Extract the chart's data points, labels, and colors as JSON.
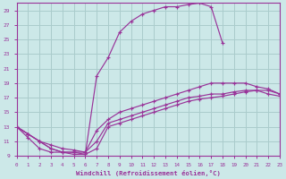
{
  "xlabel": "Windchill (Refroidissement éolien,°C)",
  "bg_color": "#cce8e8",
  "grid_color": "#aacccc",
  "line_color": "#993399",
  "xmin": 0,
  "xmax": 23,
  "ymin": 9,
  "ymax": 30,
  "yticks": [
    9,
    11,
    13,
    15,
    17,
    19,
    21,
    23,
    25,
    27,
    29
  ],
  "xticks": [
    0,
    1,
    2,
    3,
    4,
    5,
    6,
    7,
    8,
    9,
    10,
    11,
    12,
    13,
    14,
    15,
    16,
    17,
    18,
    19,
    20,
    21,
    22,
    23
  ],
  "curve1_x": [
    0,
    1,
    2,
    3,
    4,
    5,
    6,
    7,
    8,
    9,
    10,
    11,
    12,
    13,
    14,
    15,
    16,
    17,
    18
  ],
  "curve1_y": [
    13,
    12,
    11,
    10,
    9.5,
    9.5,
    9.2,
    20,
    22.5,
    26,
    27.5,
    28.5,
    29,
    29.5,
    29.5,
    29.8,
    30,
    29.5,
    24.5
  ],
  "curve2_x": [
    0,
    1,
    2,
    3,
    4,
    5,
    6,
    7,
    8,
    9,
    10,
    11,
    12,
    13,
    14,
    15,
    16,
    17,
    18,
    19,
    20,
    21,
    22,
    23
  ],
  "curve2_y": [
    13,
    12,
    11,
    10,
    9.5,
    9.5,
    9.5,
    12.5,
    14,
    15,
    15.5,
    16,
    16.5,
    17,
    17.5,
    18,
    18.5,
    19,
    19,
    19,
    19,
    18.5,
    18.2,
    17.5
  ],
  "curve3_x": [
    0,
    1,
    2,
    3,
    4,
    5,
    6,
    7,
    8,
    9,
    10,
    11,
    12,
    13,
    14,
    15,
    16,
    17,
    18,
    19,
    20,
    21,
    22,
    23
  ],
  "curve3_y": [
    13,
    12,
    11,
    10.5,
    10,
    9.8,
    9.5,
    11,
    13.5,
    14,
    14.5,
    15,
    15.5,
    16,
    16.5,
    17,
    17.2,
    17.5,
    17.5,
    17.8,
    18,
    18,
    17.5,
    17.2
  ],
  "curve4_x": [
    0,
    1,
    2,
    3,
    4,
    5,
    6,
    7,
    8,
    9,
    10,
    11,
    12,
    13,
    14,
    15,
    16,
    17,
    18,
    19,
    20,
    21,
    22,
    23
  ],
  "curve4_y": [
    13,
    11.5,
    10,
    9.5,
    9.5,
    9.2,
    9.2,
    10,
    13,
    13.5,
    14,
    14.5,
    15,
    15.5,
    16,
    16.5,
    16.8,
    17,
    17.2,
    17.5,
    17.8,
    18,
    18,
    17.5
  ]
}
